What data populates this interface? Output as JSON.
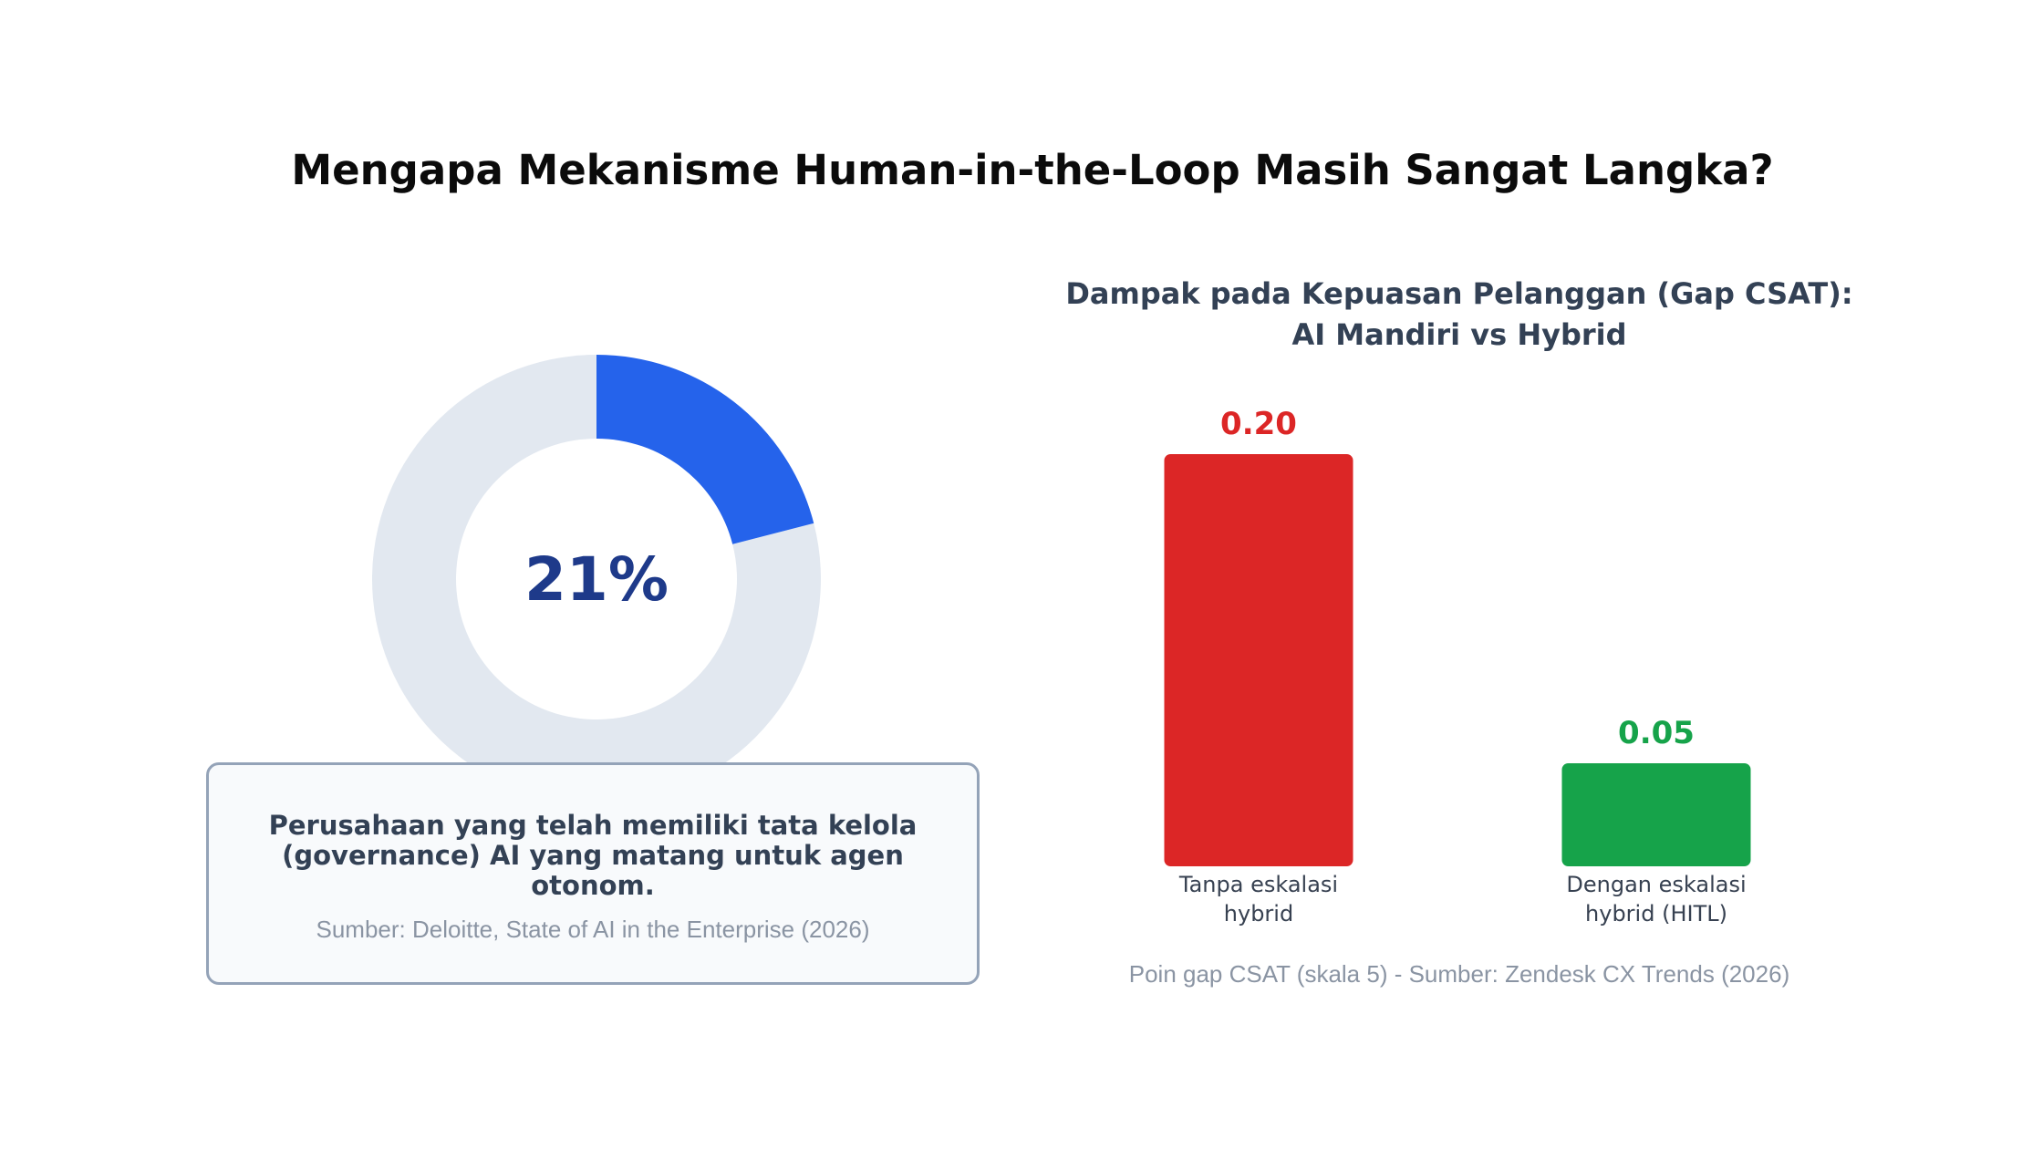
{
  "page": {
    "title": "Mengapa Mekanisme Human-in-the-Loop Masih Sangat Langka?"
  },
  "donut": {
    "value": 21,
    "label": "21%",
    "description": "Perusahaan yang telah memiliki tata kelola (governance) AI yang matang untuk agen otonom.",
    "source": "Sumber: Deloitte, State of AI in the Enterprise (2026)",
    "colors": {
      "filled": "#2563eb",
      "track": "#e2e8f0",
      "label": "#1e3a8a"
    }
  },
  "bar_panel": {
    "title_line1": "Dampak pada Kepuasan Pelanggan (Gap CSAT):",
    "title_line2": "AI Mandiri vs Hybrid",
    "footnote": "Poin gap CSAT (skala 5) - Sumber: Zendesk CX Trends (2026)"
  },
  "chart_data": [
    {
      "type": "pie",
      "values": [
        21,
        79
      ],
      "categories": [
        "",
        ""
      ],
      "colors": [
        "#2563eb",
        "#e2e8f0"
      ],
      "center_label": "21%"
    },
    {
      "type": "bar",
      "title": "Dampak pada Kepuasan Pelanggan (Gap CSAT): AI Mandiri vs Hybrid",
      "categories": [
        [
          "Tanpa eskalasi",
          "hybrid"
        ],
        [
          "Dengan eskalasi",
          "hybrid (HITL)"
        ]
      ],
      "values": [
        0.2,
        0.05
      ],
      "value_labels": [
        "0.20",
        "0.05"
      ],
      "colors": [
        "#dc2626",
        "#16a34a"
      ],
      "ylim": [
        0,
        0.2
      ],
      "grid": false,
      "xlabel": "",
      "ylabel": ""
    }
  ]
}
